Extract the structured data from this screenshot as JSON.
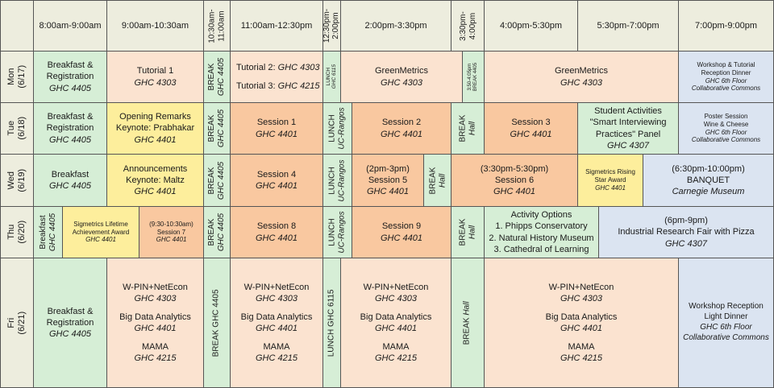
{
  "colors": {
    "header": "#ededde",
    "meal": "#d6eed6",
    "tutorial": "#fbe3d0",
    "session": "#f9c8a0",
    "keynote": "#fdee9c",
    "evening": "#dbe4f1"
  },
  "header": {
    "c1": "8:00am-9:00am",
    "c2": "9:00am-10:30am",
    "c3": [
      "10:30am-",
      "11:00am"
    ],
    "c4": "11:00am-12:30pm",
    "c5": [
      "12:30pm-",
      "2:00pm"
    ],
    "c6": "2:00pm-3:30pm",
    "c7": [
      "3:30pm-",
      "4:00pm"
    ],
    "c8": "4:00pm-5:30pm",
    "c9": "5:30pm-7:00pm",
    "c10": "7:00pm-9:00pm"
  },
  "days": {
    "mon": [
      "Mon",
      "(6/17)"
    ],
    "tue": [
      "Tue",
      "(6/18)"
    ],
    "wed": [
      "Wed",
      "(6/19)"
    ],
    "thu": [
      "Thu",
      "(6/20)"
    ],
    "fri": [
      "Fri",
      "(6/21)"
    ]
  },
  "mon": {
    "breakfast": [
      "Breakfast &",
      "Registration",
      "GHC 4405"
    ],
    "tutorial1": [
      "Tutorial 1",
      "GHC 4303"
    ],
    "break": [
      "BREAK",
      "GHC 4405"
    ],
    "tut2_label": "Tutorial 2: ",
    "tut2_room": "GHC 4303",
    "tut3_label": "Tutorial 3: ",
    "tut3_room": "GHC 4215",
    "lunch": [
      "LUNCH",
      "GHC 6115"
    ],
    "greenmetrics1": [
      "GreenMetrics",
      "GHC 4303"
    ],
    "break2": [
      "3:50-4:05pm",
      "BREAK 4405"
    ],
    "greenmetrics2": [
      "GreenMetrics",
      "GHC 4303"
    ],
    "evening": [
      "Workshop & Tutorial",
      "Reception Dinner",
      "GHC 6th Floor",
      "Collaborative Commons"
    ]
  },
  "tue": {
    "breakfast": [
      "Breakfast &",
      "Registration",
      "GHC 4405"
    ],
    "keynote": [
      "Opening Remarks",
      "Keynote: Prabhakar",
      "GHC 4401"
    ],
    "break": [
      "BREAK",
      "GHC 4405"
    ],
    "session1": [
      "Session 1",
      "GHC 4401"
    ],
    "lunch": [
      "LUNCH",
      "UC-Rangos"
    ],
    "session2": [
      "Session 2",
      "GHC 4401"
    ],
    "break2": [
      "BREAK",
      "Hall"
    ],
    "session3": [
      "Session 3",
      "GHC 4401"
    ],
    "student": [
      "Student Activities",
      "\"Smart Interviewing",
      "Practices\" Panel",
      "GHC 4307"
    ],
    "evening": [
      "Poster Session",
      "Wine & Cheese",
      "GHC 6th Floor",
      "Collaborative Commons"
    ]
  },
  "wed": {
    "breakfast": [
      "Breakfast",
      "GHC 4405"
    ],
    "keynote": [
      "Announcements",
      "Keynote: Maltz",
      "GHC 4401"
    ],
    "break": [
      "BREAK",
      "GHC 4405"
    ],
    "session4": [
      "Session 4",
      "GHC 4401"
    ],
    "lunch": [
      "LUNCH",
      "UC-Rangos"
    ],
    "session5": [
      "(2pm-3pm)",
      "Session 5",
      "GHC 4401"
    ],
    "break2": [
      "BREAK",
      "Hall"
    ],
    "session6": [
      "(3:30pm-5:30pm)",
      "Session 6",
      "GHC 4401"
    ],
    "award": [
      "Sigmetrics Rising",
      "Star Award",
      "GHC 4401"
    ],
    "banquet": [
      "(6:30pm-10:00pm)",
      "BANQUET",
      "Carnegie Museum"
    ]
  },
  "thu": {
    "breakfast": [
      "Breakfast",
      "GHC 4405"
    ],
    "award": [
      "Sigmetrics Lifetime",
      "Achievement Award",
      "GHC 4401"
    ],
    "session7": [
      "(9:30-10:30am)",
      "Session 7",
      "GHC 4401"
    ],
    "break": [
      "BREAK",
      "GHC 4405"
    ],
    "session8": [
      "Session 8",
      "GHC 4401"
    ],
    "lunch": [
      "LUNCH",
      "UC-Rangos"
    ],
    "session9": [
      "Session 9",
      "GHC 4401"
    ],
    "break2": [
      "BREAK",
      "Hall"
    ],
    "activity": [
      "Activity Options",
      "1. Phipps Conservatory",
      "2. Natural History Museum",
      "3. Cathedral of Learning"
    ],
    "fair": [
      "(6pm-9pm)",
      "Industrial Research Fair with Pizza",
      "GHC 4307"
    ]
  },
  "fri": {
    "breakfast": [
      "Breakfast &",
      "Registration",
      "GHC 4405"
    ],
    "morning": [
      "W-PIN+NetEcon",
      "GHC 4303",
      "Big Data Analytics",
      "GHC 4401",
      "MAMA",
      "GHC 4215"
    ],
    "break": "BREAK GHC 4405",
    "midday": [
      "W-PIN+NetEcon",
      "GHC 4303",
      "Big Data Analytics",
      "GHC 4401",
      "MAMA",
      "GHC 4215"
    ],
    "lunch": "LUNCH GHC 6115",
    "afternoon": [
      "W-PIN+NetEcon",
      "GHC 4303",
      "Big Data Analytics",
      "GHC 4401",
      "MAMA",
      "GHC 4215"
    ],
    "break2_a": "BREAK ",
    "break2_b": "Hall",
    "late": [
      "W-PIN+NetEcon",
      "GHC 4303",
      "Big Data Analytics",
      "GHC 4401",
      "MAMA",
      "GHC 4215"
    ],
    "evening": [
      "Workshop Reception",
      "Light Dinner",
      "GHC 6th Floor",
      "Collaborative Commons"
    ]
  }
}
